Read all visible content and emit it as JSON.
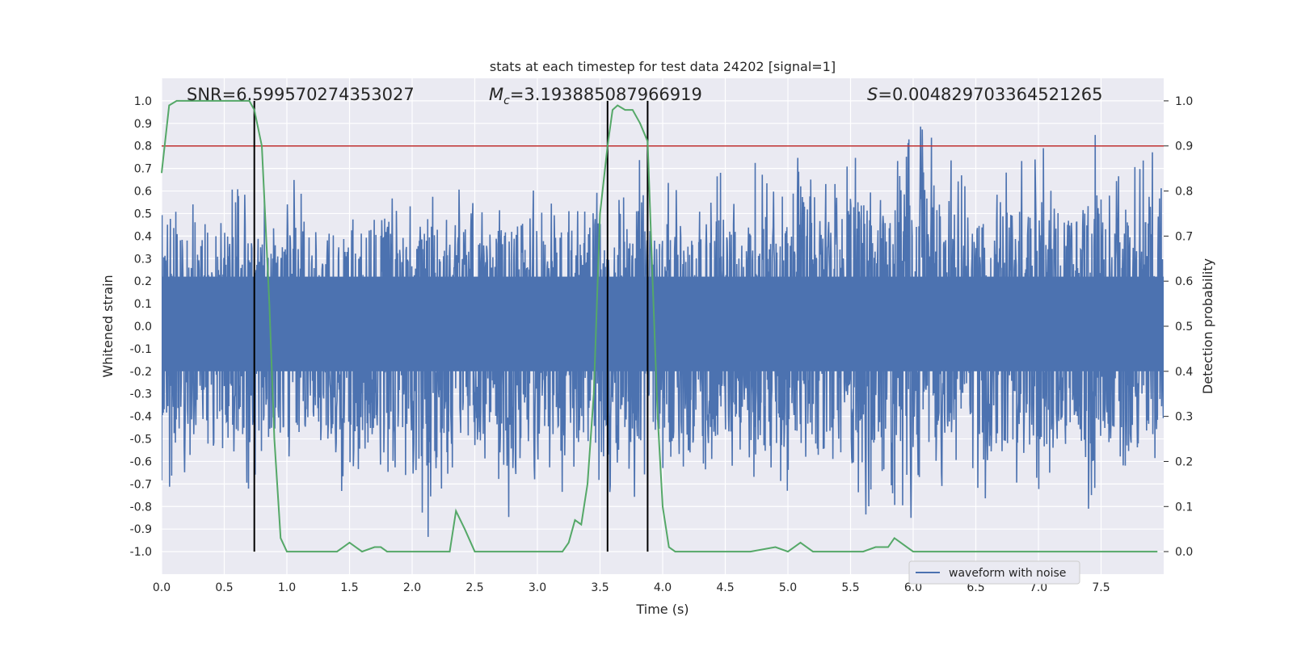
{
  "chart_data": {
    "type": "line",
    "title": "stats at each timestep for test data 24202 [signal=1]",
    "xlabel": "Time (s)",
    "ylabel": "Whitened strain",
    "y2label": "Detection probability",
    "xlim": [
      0.0,
      8.0
    ],
    "ylim": [
      -1.1,
      1.1
    ],
    "y2lim": [
      -0.05,
      1.05
    ],
    "xticks": [
      "0.0",
      "0.5",
      "1.0",
      "1.5",
      "2.0",
      "2.5",
      "3.0",
      "3.5",
      "4.0",
      "4.5",
      "5.0",
      "5.5",
      "6.0",
      "6.5",
      "7.0",
      "7.5"
    ],
    "yticks": [
      "1.0",
      "0.9",
      "0.8",
      "0.7",
      "0.6",
      "0.5",
      "0.4",
      "0.3",
      "0.2",
      "0.1",
      "0.0",
      "-0.1",
      "-0.2",
      "-0.3",
      "-0.4",
      "-0.5",
      "-0.6",
      "-0.7",
      "-0.8",
      "-0.9",
      "-1.0"
    ],
    "y2ticks": [
      "1.0",
      "0.9",
      "0.8",
      "0.7",
      "0.6",
      "0.5",
      "0.4",
      "0.3",
      "0.2",
      "0.1",
      "0.0"
    ],
    "grid": true,
    "annotations": {
      "snr": "SNR=6.599570274353027",
      "mc_symbol": "M",
      "mc_sub": "c",
      "mc_value": "=3.193885087966919",
      "s_symbol": "S",
      "s_value": "=0.004829703364521265"
    },
    "legend": {
      "label": "waveform with noise",
      "position": "lower-center-right"
    },
    "threshold": {
      "value": 0.9,
      "axis": "y2",
      "color": "#c03030"
    },
    "vertical_markers": [
      0.74,
      3.56,
      3.88
    ],
    "marker_range_y2": [
      0.0,
      1.0
    ],
    "colors": {
      "strain": "#4c72b0",
      "probability": "#55a868",
      "marker": "#000000",
      "background": "#eaeaf2",
      "grid": "#ffffff"
    },
    "series": [
      {
        "name": "Detection probability",
        "axis": "y2",
        "x": [
          0.0,
          0.06,
          0.12,
          0.2,
          0.3,
          0.4,
          0.5,
          0.6,
          0.7,
          0.74,
          0.8,
          0.86,
          0.9,
          0.95,
          1.0,
          1.1,
          1.2,
          1.3,
          1.4,
          1.45,
          1.5,
          1.55,
          1.6,
          1.7,
          1.75,
          1.8,
          1.9,
          2.0,
          2.1,
          2.2,
          2.3,
          2.35,
          2.42,
          2.5,
          2.6,
          2.7,
          2.8,
          2.9,
          3.0,
          3.1,
          3.2,
          3.25,
          3.3,
          3.35,
          3.4,
          3.45,
          3.5,
          3.56,
          3.6,
          3.64,
          3.7,
          3.76,
          3.82,
          3.88,
          3.92,
          3.96,
          4.0,
          4.05,
          4.1,
          4.2,
          4.3,
          4.5,
          4.7,
          4.9,
          5.0,
          5.05,
          5.1,
          5.15,
          5.2,
          5.3,
          5.4,
          5.5,
          5.6,
          5.7,
          5.75,
          5.8,
          5.85,
          5.9,
          5.95,
          6.0,
          6.1,
          6.2,
          6.4,
          6.6,
          6.8,
          7.0,
          7.2,
          7.4,
          7.6,
          7.8,
          7.95
        ],
        "values": [
          0.84,
          0.99,
          1.0,
          1.0,
          1.0,
          1.0,
          1.0,
          1.0,
          1.0,
          0.98,
          0.9,
          0.55,
          0.25,
          0.03,
          0.0,
          0.0,
          0.0,
          0.0,
          0.0,
          0.01,
          0.02,
          0.01,
          0.0,
          0.01,
          0.01,
          0.0,
          0.0,
          0.0,
          0.0,
          0.0,
          0.0,
          0.09,
          0.05,
          0.0,
          0.0,
          0.0,
          0.0,
          0.0,
          0.0,
          0.0,
          0.0,
          0.02,
          0.07,
          0.06,
          0.15,
          0.35,
          0.75,
          0.9,
          0.98,
          0.99,
          0.98,
          0.98,
          0.95,
          0.91,
          0.6,
          0.3,
          0.1,
          0.01,
          0.0,
          0.0,
          0.0,
          0.0,
          0.0,
          0.01,
          0.0,
          0.01,
          0.02,
          0.01,
          0.0,
          0.0,
          0.0,
          0.0,
          0.0,
          0.01,
          0.01,
          0.01,
          0.03,
          0.02,
          0.01,
          0.0,
          0.0,
          0.0,
          0.0,
          0.0,
          0.0,
          0.0,
          0.0,
          0.0,
          0.0,
          0.0,
          0.0
        ]
      },
      {
        "name": "waveform with noise",
        "axis": "y",
        "x_range": [
          0.0,
          8.0
        ],
        "envelope_upper": [
          0.65,
          0.5,
          0.4,
          0.55,
          0.5,
          0.45,
          0.6,
          0.45,
          0.55,
          0.5,
          0.6,
          0.5,
          0.6,
          0.55,
          0.65,
          0.5,
          0.55,
          0.6,
          0.5,
          0.55,
          0.6,
          0.5,
          0.7,
          0.55,
          0.6,
          0.5,
          0.6,
          0.55,
          0.65,
          0.6,
          0.7,
          0.6,
          0.65,
          0.7,
          0.6,
          0.75,
          0.9,
          0.7,
          0.65,
          0.6,
          0.7,
          0.65,
          0.7,
          0.6,
          0.75,
          0.6,
          0.65,
          0.7
        ],
        "envelope_lower": [
          -0.65,
          -0.6,
          -0.55,
          -0.6,
          -0.7,
          -0.6,
          -0.65,
          -0.6,
          -0.7,
          -0.65,
          -0.6,
          -0.7,
          -0.85,
          -0.7,
          -0.6,
          -0.65,
          -0.8,
          -0.65,
          -0.6,
          -0.7,
          -0.65,
          -0.75,
          -0.7,
          -0.6,
          -0.65,
          -0.6,
          -0.7,
          -0.6,
          -0.75,
          -0.7,
          -0.65,
          -0.7,
          -0.6,
          -0.8,
          -0.65,
          -0.85,
          -0.7,
          -0.65,
          -0.6,
          -0.7,
          -0.75,
          -0.65,
          -0.7,
          -0.6,
          -0.75,
          -0.65,
          -0.7,
          -0.6
        ]
      }
    ]
  }
}
